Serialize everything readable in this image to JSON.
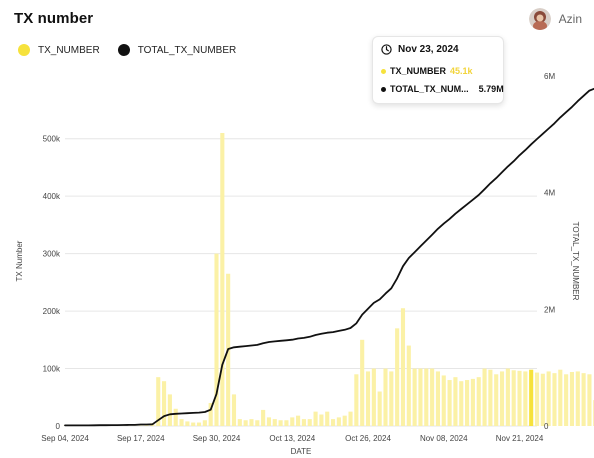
{
  "header": {
    "title": "TX number",
    "user_name": "Azin"
  },
  "legend": [
    {
      "label": "TX_NUMBER",
      "color": "#F6E23C"
    },
    {
      "label": "TOTAL_TX_NUMBER",
      "color": "#111111"
    }
  ],
  "tooltip": {
    "date": "Nov 23, 2024",
    "rows": [
      {
        "label": "TX_NUMBER",
        "value": "45.1k",
        "color": "#F6E23C",
        "value_color": "#F2D43A"
      },
      {
        "label": "TOTAL_TX_NUM...",
        "value": "5.79M",
        "color": "#111111",
        "value_color": "#111111"
      }
    ]
  },
  "colors": {
    "bar": "#FBF1A6",
    "bar_highlight": "#F6E23C",
    "line": "#111111",
    "grid": "#E6E6E6"
  },
  "chart_data": {
    "type": "bar+line",
    "xlabel": "DATE",
    "ylabel_left": "TX Number",
    "ylabel_right": "TOTAL_TX_NUMBER",
    "ylim_left": [
      0,
      550000
    ],
    "ylim_right": [
      0,
      6000000
    ],
    "yticks_left": [
      0,
      100000,
      200000,
      300000,
      400000,
      500000
    ],
    "yticks_left_labels": [
      "0",
      "100k",
      "200k",
      "300k",
      "400k",
      "500k"
    ],
    "yticks_right": [
      0,
      2000000,
      4000000,
      6000000
    ],
    "yticks_right_labels": [
      "0",
      "2M",
      "4M",
      "6M"
    ],
    "x_start": "2024-09-04",
    "xticks": [
      "2024-09-04",
      "2024-09-17",
      "2024-09-30",
      "2024-10-13",
      "2024-10-26",
      "2024-11-08",
      "2024-11-21"
    ],
    "xtick_labels": [
      "Sep 04, 2024",
      "Sep 17, 2024",
      "Sep 30, 2024",
      "Oct 13, 2024",
      "Oct 26, 2024",
      "Nov 08, 2024",
      "Nov 21, 2024"
    ],
    "grid": true,
    "highlight_date": "2024-11-23",
    "series": [
      {
        "name": "TX_NUMBER",
        "type": "bar",
        "axis": "left",
        "values": [
          300,
          300,
          300,
          300,
          300,
          300,
          300,
          300,
          300,
          300,
          300,
          300,
          300,
          500,
          1000,
          5000,
          85000,
          78000,
          55000,
          30000,
          12000,
          8000,
          6000,
          6000,
          10000,
          40000,
          300000,
          510000,
          265000,
          55000,
          12000,
          10000,
          12000,
          10000,
          28000,
          15000,
          12000,
          10000,
          10000,
          15000,
          18000,
          12000,
          12000,
          25000,
          20000,
          25000,
          12000,
          15000,
          18000,
          25000,
          90000,
          150000,
          95000,
          100000,
          60000,
          100000,
          95000,
          170000,
          205000,
          140000,
          100000,
          100000,
          100000,
          100000,
          95000,
          88000,
          80000,
          85000,
          78000,
          80000,
          82000,
          85000,
          100000,
          98000,
          90000,
          95000,
          100000,
          97000,
          96000,
          95000,
          98000,
          93000,
          91000,
          95000,
          92000,
          98000,
          90000,
          94000,
          95000,
          92000,
          90000,
          45100
        ]
      },
      {
        "name": "TOTAL_TX_NUMBER",
        "type": "line",
        "axis": "right",
        "values": [
          10000,
          10000,
          10000,
          10000,
          10000,
          12000,
          13000,
          14000,
          15000,
          16000,
          17000,
          18000,
          19000,
          25000,
          26000,
          30000,
          100000,
          170000,
          200000,
          210000,
          215000,
          220000,
          225000,
          230000,
          240000,
          280000,
          550000,
          1050000,
          1320000,
          1350000,
          1360000,
          1370000,
          1380000,
          1390000,
          1420000,
          1440000,
          1450000,
          1460000,
          1470000,
          1480000,
          1500000,
          1510000,
          1530000,
          1560000,
          1580000,
          1600000,
          1610000,
          1630000,
          1650000,
          1680000,
          1760000,
          1910000,
          2010000,
          2110000,
          2170000,
          2270000,
          2360000,
          2530000,
          2740000,
          2880000,
          2980000,
          3080000,
          3180000,
          3280000,
          3380000,
          3470000,
          3550000,
          3640000,
          3720000,
          3800000,
          3880000,
          3960000,
          4060000,
          4160000,
          4250000,
          4350000,
          4450000,
          4540000,
          4640000,
          4730000,
          4830000,
          4920000,
          5010000,
          5100000,
          5190000,
          5290000,
          5380000,
          5470000,
          5570000,
          5660000,
          5750000,
          5790000
        ]
      }
    ]
  }
}
